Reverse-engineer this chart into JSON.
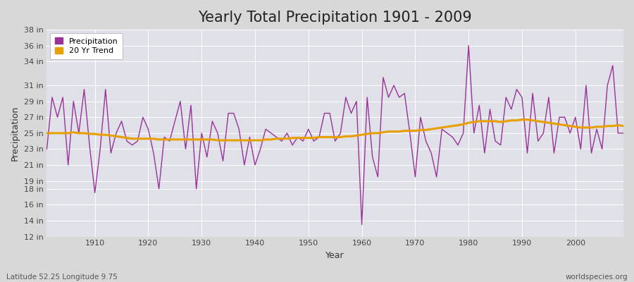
{
  "title": "Yearly Total Precipitation 1901 - 2009",
  "xlabel": "Year",
  "ylabel": "Precipitation",
  "lat_lon_label": "Latitude 52.25 Longitude 9.75",
  "source_label": "worldspecies.org",
  "years": [
    1901,
    1902,
    1903,
    1904,
    1905,
    1906,
    1907,
    1908,
    1909,
    1910,
    1911,
    1912,
    1913,
    1914,
    1915,
    1916,
    1917,
    1918,
    1919,
    1920,
    1921,
    1922,
    1923,
    1924,
    1925,
    1926,
    1927,
    1928,
    1929,
    1930,
    1931,
    1932,
    1933,
    1934,
    1935,
    1936,
    1937,
    1938,
    1939,
    1940,
    1941,
    1942,
    1943,
    1944,
    1945,
    1946,
    1947,
    1948,
    1949,
    1950,
    1951,
    1952,
    1953,
    1954,
    1955,
    1956,
    1957,
    1958,
    1959,
    1960,
    1961,
    1962,
    1963,
    1964,
    1965,
    1966,
    1967,
    1968,
    1969,
    1970,
    1971,
    1972,
    1973,
    1974,
    1975,
    1976,
    1977,
    1978,
    1979,
    1980,
    1981,
    1982,
    1983,
    1984,
    1985,
    1986,
    1987,
    1988,
    1989,
    1990,
    1991,
    1992,
    1993,
    1994,
    1995,
    1996,
    1997,
    1998,
    1999,
    2000,
    2001,
    2002,
    2003,
    2004,
    2005,
    2006,
    2007,
    2008,
    2009
  ],
  "precip": [
    23.0,
    29.5,
    27.0,
    29.5,
    21.0,
    29.0,
    25.0,
    30.5,
    23.5,
    17.5,
    23.0,
    30.5,
    22.5,
    25.0,
    26.5,
    24.0,
    23.5,
    24.0,
    27.0,
    25.5,
    22.5,
    18.0,
    24.5,
    24.0,
    26.5,
    29.0,
    23.0,
    28.5,
    18.0,
    25.0,
    22.0,
    26.5,
    25.0,
    21.5,
    27.5,
    27.5,
    25.5,
    21.0,
    24.5,
    21.0,
    23.0,
    25.5,
    25.0,
    24.5,
    24.0,
    25.0,
    23.5,
    24.5,
    24.0,
    25.5,
    24.0,
    24.5,
    27.5,
    27.5,
    24.0,
    25.0,
    29.5,
    27.5,
    29.0,
    13.5,
    29.5,
    22.0,
    19.5,
    32.0,
    29.5,
    31.0,
    29.5,
    30.0,
    25.0,
    19.5,
    27.0,
    24.0,
    22.5,
    19.5,
    25.5,
    25.0,
    24.5,
    23.5,
    25.0,
    36.0,
    25.0,
    28.5,
    22.5,
    28.0,
    24.0,
    23.5,
    29.5,
    28.0,
    30.5,
    29.5,
    22.5,
    30.0,
    24.0,
    25.0,
    29.5,
    22.5,
    27.0,
    27.0,
    25.0,
    27.0,
    23.0,
    31.0,
    22.5,
    25.5,
    23.0,
    31.0,
    33.5,
    25.0,
    25.0
  ],
  "trend": [
    25.0,
    25.0,
    25.0,
    25.0,
    25.0,
    25.1,
    25.0,
    25.0,
    24.9,
    24.9,
    24.8,
    24.8,
    24.7,
    24.6,
    24.5,
    24.4,
    24.3,
    24.3,
    24.3,
    24.3,
    24.3,
    24.2,
    24.2,
    24.2,
    24.2,
    24.2,
    24.2,
    24.2,
    24.2,
    24.2,
    24.2,
    24.2,
    24.1,
    24.1,
    24.1,
    24.1,
    24.1,
    24.1,
    24.1,
    24.1,
    24.1,
    24.2,
    24.2,
    24.3,
    24.3,
    24.3,
    24.4,
    24.4,
    24.4,
    24.4,
    24.4,
    24.5,
    24.5,
    24.5,
    24.5,
    24.5,
    24.6,
    24.6,
    24.7,
    24.8,
    24.9,
    25.0,
    25.0,
    25.1,
    25.2,
    25.2,
    25.2,
    25.3,
    25.3,
    25.3,
    25.4,
    25.4,
    25.5,
    25.6,
    25.7,
    25.8,
    25.9,
    26.0,
    26.1,
    26.3,
    26.4,
    26.5,
    26.5,
    26.5,
    26.5,
    26.4,
    26.5,
    26.6,
    26.6,
    26.7,
    26.7,
    26.6,
    26.5,
    26.4,
    26.3,
    26.2,
    26.1,
    26.0,
    25.9,
    25.8,
    25.7,
    25.7,
    25.7,
    25.8,
    25.8,
    25.9,
    25.9,
    26.0,
    25.9
  ],
  "precip_color": "#993399",
  "trend_color": "#E8A000",
  "fig_bg_color": "#D8D8D8",
  "plot_bg_color": "#E0E0E8",
  "grid_color": "#FFFFFF",
  "ylim": [
    12,
    38
  ],
  "ytick_values": [
    12,
    14,
    16,
    18,
    19,
    21,
    23,
    25,
    27,
    29,
    31,
    34,
    36,
    38
  ],
  "ytick_labels": [
    "12 in",
    "14 in",
    "16 in",
    "18 in",
    "19 in",
    "21 in",
    "23 in",
    "25 in",
    "27 in",
    "29 in",
    "31 in",
    "34 in",
    "36 in",
    "38 in"
  ],
  "xticks": [
    1910,
    1920,
    1930,
    1940,
    1950,
    1960,
    1970,
    1980,
    1990,
    2000
  ],
  "xlim": [
    1901,
    2009
  ],
  "title_fontsize": 15,
  "axis_label_fontsize": 9,
  "tick_fontsize": 8,
  "legend_fontsize": 8
}
